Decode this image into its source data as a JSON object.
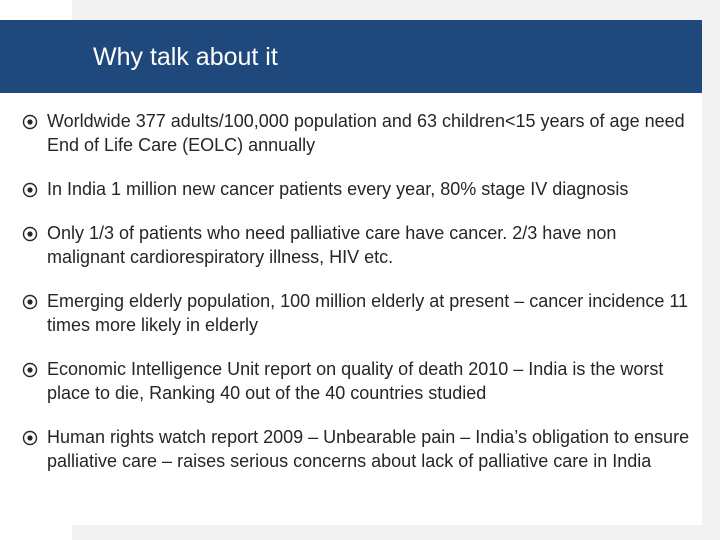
{
  "slide": {
    "title": "Why talk about it",
    "colors": {
      "title_bar": "#1f497d",
      "text": "#262626",
      "background": "#ffffff"
    },
    "bullet_icon": "target-icon",
    "bullets": [
      "Worldwide 377 adults/100,000 population and 63 children<15 years of age need End of Life Care (EOLC) annually",
      "In India 1 million new cancer patients every year, 80% stage IV diagnosis",
      "Only 1/3 of patients who need palliative care have cancer. 2/3 have non malignant cardiorespiratory illness, HIV etc.",
      "Emerging elderly population, 100 million elderly at present – cancer incidence 11 times more likely in elderly",
      "Economic Intelligence Unit report on quality of death  2010 – India is the worst place to die, Ranking 40 out of the 40 countries studied",
      "Human rights watch report 2009 – Unbearable pain – India’s obligation to ensure palliative care – raises serious concerns about lack of palliative care in India"
    ]
  }
}
